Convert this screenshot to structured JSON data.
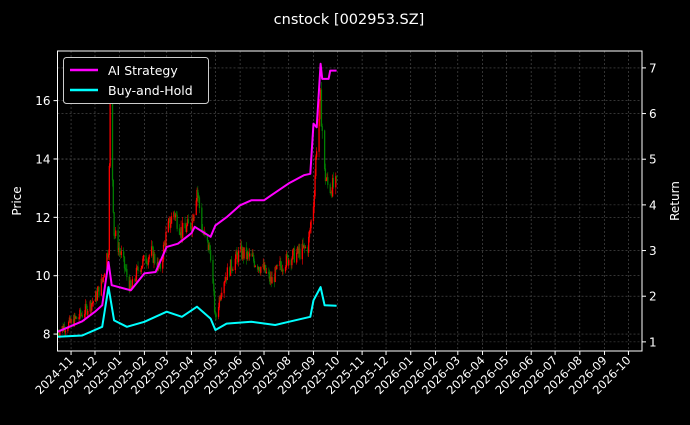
{
  "chart_data": {
    "type": "line",
    "title": "cnstock [002953.SZ]",
    "ylabel": "Price",
    "y2label": "Return",
    "ylim": [
      7.42,
      17.7
    ],
    "y2lim": [
      0.8,
      7.37
    ],
    "xlim": [
      "2024-10-15",
      "2026-10-18"
    ],
    "yticks": [
      8,
      10,
      12,
      14,
      16
    ],
    "y2ticks": [
      1,
      2,
      3,
      4,
      5,
      6,
      7
    ],
    "xticks": [
      "2024-11",
      "2024-12",
      "2025-01",
      "2025-02",
      "2025-03",
      "2025-04",
      "2025-05",
      "2025-06",
      "2025-07",
      "2025-08",
      "2025-09",
      "2025-10",
      "2025-11",
      "2025-12",
      "2026-01",
      "2026-02",
      "2026-03",
      "2026-04",
      "2026-05",
      "2026-06",
      "2026-07",
      "2026-08",
      "2026-09",
      "2026-10"
    ],
    "grid": true,
    "legend": "top-left",
    "background": "#000000",
    "candle_colors": {
      "up": "#ff0000",
      "down": "#008000"
    },
    "price": {
      "dates": [
        "2024-10-15",
        "2024-11-01",
        "2024-11-15",
        "2024-12-01",
        "2024-12-10",
        "2024-12-18",
        "2024-12-20",
        "2024-12-25",
        "2025-01-05",
        "2025-01-15",
        "2025-01-25",
        "2025-02-10",
        "2025-02-20",
        "2025-03-01",
        "2025-03-10",
        "2025-03-20",
        "2025-04-01",
        "2025-04-08",
        "2025-04-15",
        "2025-04-25",
        "2025-05-01",
        "2025-05-10",
        "2025-05-20",
        "2025-06-01",
        "2025-06-15",
        "2025-07-01",
        "2025-07-10",
        "2025-07-20",
        "2025-08-01",
        "2025-08-15",
        "2025-08-25",
        "2025-09-01",
        "2025-09-05",
        "2025-09-10",
        "2025-09-15",
        "2025-09-20",
        "2025-09-30"
      ],
      "close": [
        8.1,
        8.4,
        8.7,
        9.2,
        9.8,
        11.0,
        16.2,
        11.5,
        10.5,
        9.5,
        10.3,
        10.8,
        10.2,
        11.5,
        12.2,
        11.5,
        11.8,
        13.0,
        11.5,
        10.8,
        8.5,
        9.8,
        10.3,
        10.8,
        10.6,
        10.2,
        9.8,
        10.3,
        10.6,
        10.8,
        11.0,
        12.5,
        14.5,
        16.0,
        13.5,
        13.0,
        13.1
      ]
    },
    "series": [
      {
        "name": "AI Strategy",
        "color": "#ff00ff",
        "dates": [
          "2024-10-15",
          "2024-11-15",
          "2024-12-01",
          "2024-12-10",
          "2024-12-18",
          "2024-12-22",
          "2025-01-15",
          "2025-02-01",
          "2025-02-15",
          "2025-03-01",
          "2025-03-15",
          "2025-04-01",
          "2025-04-05",
          "2025-04-25",
          "2025-05-01",
          "2025-05-15",
          "2025-06-01",
          "2025-06-15",
          "2025-07-01",
          "2025-07-10",
          "2025-08-01",
          "2025-08-20",
          "2025-08-28",
          "2025-09-01",
          "2025-09-05",
          "2025-09-10",
          "2025-09-12",
          "2025-09-20",
          "2025-09-22",
          "2025-09-30"
        ],
        "values": [
          1.22,
          1.45,
          1.66,
          1.8,
          2.75,
          2.24,
          2.13,
          2.5,
          2.53,
          3.08,
          3.15,
          3.38,
          3.52,
          3.3,
          3.55,
          3.73,
          3.99,
          4.1,
          4.1,
          4.21,
          4.47,
          4.65,
          4.68,
          5.78,
          5.7,
          7.09,
          6.76,
          6.76,
          6.94,
          6.94
        ]
      },
      {
        "name": "Buy-and-Hold",
        "color": "#00ffff",
        "dates": [
          "2024-10-15",
          "2024-11-15",
          "2024-12-10",
          "2024-12-18",
          "2024-12-25",
          "2025-01-10",
          "2025-02-01",
          "2025-03-01",
          "2025-03-20",
          "2025-04-08",
          "2025-04-25",
          "2025-05-01",
          "2025-05-15",
          "2025-06-15",
          "2025-07-15",
          "2025-08-01",
          "2025-08-28",
          "2025-09-01",
          "2025-09-10",
          "2025-09-15",
          "2025-09-30"
        ],
        "values": [
          1.11,
          1.14,
          1.33,
          2.2,
          1.47,
          1.33,
          1.44,
          1.66,
          1.55,
          1.77,
          1.51,
          1.26,
          1.4,
          1.44,
          1.37,
          1.44,
          1.55,
          1.91,
          2.2,
          1.8,
          1.79
        ]
      }
    ]
  }
}
